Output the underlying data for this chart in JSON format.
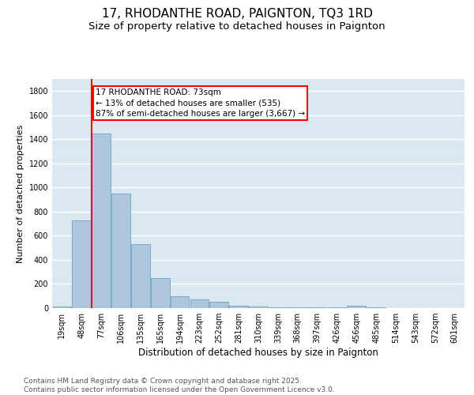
{
  "title": "17, RHODANTHE ROAD, PAIGNTON, TQ3 1RD",
  "subtitle": "Size of property relative to detached houses in Paignton",
  "xlabel": "Distribution of detached houses by size in Paignton",
  "ylabel": "Number of detached properties",
  "categories": [
    "19sqm",
    "48sqm",
    "77sqm",
    "106sqm",
    "135sqm",
    "165sqm",
    "194sqm",
    "223sqm",
    "252sqm",
    "281sqm",
    "310sqm",
    "339sqm",
    "368sqm",
    "397sqm",
    "426sqm",
    "456sqm",
    "485sqm",
    "514sqm",
    "543sqm",
    "572sqm",
    "601sqm"
  ],
  "values": [
    10,
    730,
    1450,
    950,
    530,
    250,
    100,
    75,
    50,
    20,
    10,
    8,
    5,
    5,
    5,
    20,
    5,
    2,
    1,
    1,
    1
  ],
  "bar_color": "#aec6de",
  "bar_edge_color": "#7aaac8",
  "red_line_x": 2,
  "annotation_text": "17 RHODANTHE ROAD: 73sqm\n← 13% of detached houses are smaller (535)\n87% of semi-detached houses are larger (3,667) →",
  "annotation_box_color": "white",
  "annotation_box_edge_color": "red",
  "ylim": [
    0,
    1900
  ],
  "yticks": [
    0,
    200,
    400,
    600,
    800,
    1000,
    1200,
    1400,
    1600,
    1800
  ],
  "background_color": "#dce8f0",
  "grid_color": "white",
  "footer_text": "Contains HM Land Registry data © Crown copyright and database right 2025.\nContains public sector information licensed under the Open Government Licence v3.0.",
  "title_fontsize": 11,
  "subtitle_fontsize": 9.5,
  "xlabel_fontsize": 8.5,
  "ylabel_fontsize": 8,
  "tick_fontsize": 7,
  "annotation_fontsize": 7.5,
  "footer_fontsize": 6.5
}
